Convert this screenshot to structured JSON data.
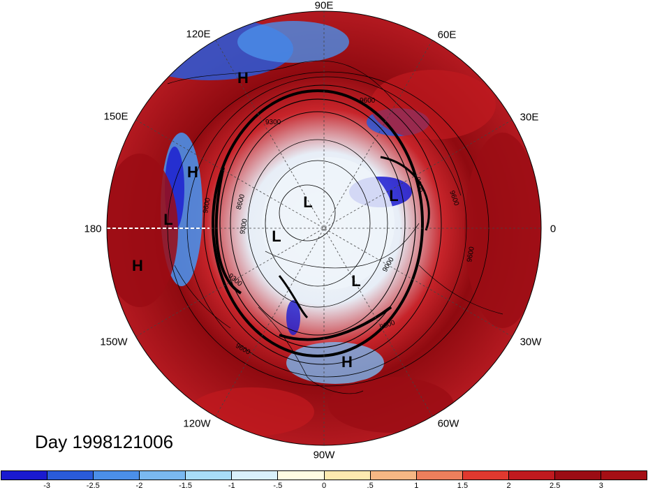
{
  "map": {
    "longitude_labels": [
      "90E",
      "60E",
      "30E",
      "0",
      "30W",
      "60W",
      "90W",
      "120W",
      "150W",
      "180",
      "150E",
      "120E"
    ],
    "pressure_markers": [
      {
        "label": "H"
      },
      {
        "label": "H"
      },
      {
        "label": "L"
      },
      {
        "label": "H"
      },
      {
        "label": "L"
      },
      {
        "label": "L"
      },
      {
        "label": "L"
      },
      {
        "label": "L"
      },
      {
        "label": "H"
      }
    ],
    "contour_labels": [
      "9600",
      "9300",
      "9600",
      "8600",
      "9300",
      "9600",
      "9000",
      "9300",
      "9600",
      "9600",
      "9300",
      "9600"
    ],
    "colors": {
      "ocean_red": "#a50f15",
      "land_line": "#000000",
      "background": "#ffffff"
    }
  },
  "day_label": "Day 1998121006",
  "colorbar": {
    "colors": [
      "#1a1ad0",
      "#2a5bd9",
      "#4b8fe8",
      "#7ab8f0",
      "#a8dcf7",
      "#d9f0fb",
      "#fffbe3",
      "#fde9b0",
      "#f6b784",
      "#ee7f5c",
      "#e0392f",
      "#c01a1f",
      "#9b0c14",
      "#a50f15"
    ],
    "tick_labels": [
      "-3",
      "-2.5",
      "-2",
      "-1.5",
      "-1",
      "-.5",
      "0",
      ".5",
      "1",
      "1.5",
      "2",
      "2.5",
      "3"
    ]
  }
}
